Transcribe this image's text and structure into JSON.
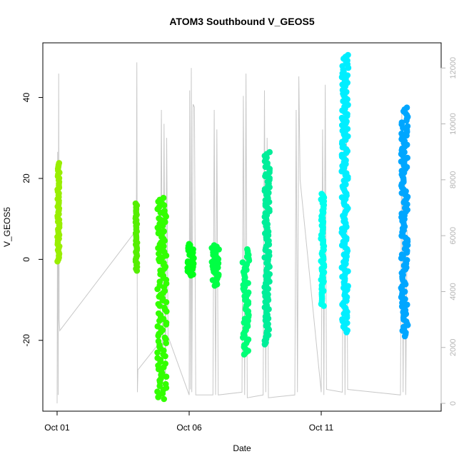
{
  "chart_data": {
    "type": "scatter",
    "title": "ATOM3 Southbound V_GEOS5",
    "xlabel": "Date",
    "ylabel": "V_GEOS5",
    "x_ticks": [
      {
        "value": 1,
        "label": "Oct 01"
      },
      {
        "value": 6,
        "label": "Oct 06"
      },
      {
        "value": 11,
        "label": "Oct 11"
      }
    ],
    "y_ticks": [
      -20,
      0,
      20,
      40
    ],
    "y2_ticks": [
      0,
      2000,
      4000,
      6000,
      8000,
      10000,
      12000
    ],
    "xlim": [
      0.46,
      15.54
    ],
    "ylim": [
      -37.5,
      53.5
    ],
    "y2lim": [
      -280,
      12900
    ],
    "colors": {
      "altitude_trace": "#c8c8c8",
      "frame": "#000000",
      "right_axis": "#b4b4b4"
    },
    "altitude_trace": [
      [
        1.0,
        0
      ],
      [
        1.02,
        9000
      ],
      [
        1.04,
        300
      ],
      [
        1.06,
        11800
      ],
      [
        1.08,
        3000
      ],
      [
        1.1,
        2600
      ],
      [
        4.0,
        6200
      ],
      [
        4.02,
        12200
      ],
      [
        4.04,
        400
      ],
      [
        4.06,
        1200
      ],
      [
        4.9,
        2200
      ],
      [
        4.95,
        10500
      ],
      [
        5.0,
        200
      ],
      [
        5.05,
        10000
      ],
      [
        5.1,
        600
      ],
      [
        5.15,
        9500
      ],
      [
        5.2,
        2400
      ],
      [
        6.0,
        300
      ],
      [
        6.02,
        11200
      ],
      [
        6.05,
        500
      ],
      [
        6.08,
        12000
      ],
      [
        6.1,
        400
      ],
      [
        6.15,
        10700
      ],
      [
        6.2,
        10600
      ],
      [
        6.25,
        300
      ],
      [
        6.9,
        300
      ],
      [
        6.95,
        10500
      ],
      [
        7.0,
        300
      ],
      [
        7.05,
        9800
      ],
      [
        7.1,
        300
      ],
      [
        8.0,
        400
      ],
      [
        8.05,
        11000
      ],
      [
        8.1,
        300
      ],
      [
        8.15,
        11800
      ],
      [
        8.2,
        200
      ],
      [
        8.8,
        300
      ],
      [
        8.85,
        11200
      ],
      [
        8.9,
        400
      ],
      [
        8.95,
        9500
      ],
      [
        9.0,
        200
      ],
      [
        10.0,
        300
      ],
      [
        10.05,
        10500
      ],
      [
        10.1,
        400
      ],
      [
        10.15,
        11700
      ],
      [
        10.2,
        8000
      ],
      [
        11.0,
        400
      ],
      [
        11.05,
        9800
      ],
      [
        11.1,
        300
      ],
      [
        11.15,
        11400
      ],
      [
        11.2,
        500
      ],
      [
        11.8,
        400
      ],
      [
        11.85,
        11600
      ],
      [
        11.9,
        300
      ],
      [
        11.95,
        10800
      ],
      [
        12.0,
        500
      ],
      [
        14.0,
        300
      ],
      [
        14.05,
        10500
      ],
      [
        14.1,
        400
      ],
      [
        14.15,
        9700
      ],
      [
        14.2,
        300
      ],
      [
        14.25,
        6200
      ]
    ],
    "series": [
      {
        "color": "#99ee00",
        "x": 1.05,
        "x_span": 0.08,
        "y_min": -0.5,
        "y_max": 23.8
      },
      {
        "color": "#55ee00",
        "x": 4.0,
        "x_span": 0.06,
        "y_min": -2.8,
        "y_max": 13.8
      },
      {
        "color": "#33ff00",
        "x": 4.97,
        "x_span": 0.35,
        "y_min": -34.5,
        "y_max": 15.2
      },
      {
        "color": "#00ff1a",
        "x": 6.05,
        "x_span": 0.25,
        "y_min": -4.0,
        "y_max": 3.8
      },
      {
        "color": "#00ff44",
        "x": 7.0,
        "x_span": 0.3,
        "y_min": -6.5,
        "y_max": 3.5
      },
      {
        "color": "#00ff77",
        "x": 8.15,
        "x_span": 0.25,
        "y_min": -23.5,
        "y_max": 2.5
      },
      {
        "color": "#00ee99",
        "x": 8.95,
        "x_span": 0.2,
        "y_min": -21.0,
        "y_max": 26.5
      },
      {
        "color": "#00ffee",
        "x": 11.05,
        "x_span": 0.12,
        "y_min": -11.5,
        "y_max": 16.2
      },
      {
        "color": "#00eeff",
        "x": 11.9,
        "x_span": 0.25,
        "y_min": -18.0,
        "y_max": 50.5
      },
      {
        "color": "#00a6ff",
        "x": 14.15,
        "x_span": 0.25,
        "y_min": -19.0,
        "y_max": 37.5
      }
    ]
  }
}
